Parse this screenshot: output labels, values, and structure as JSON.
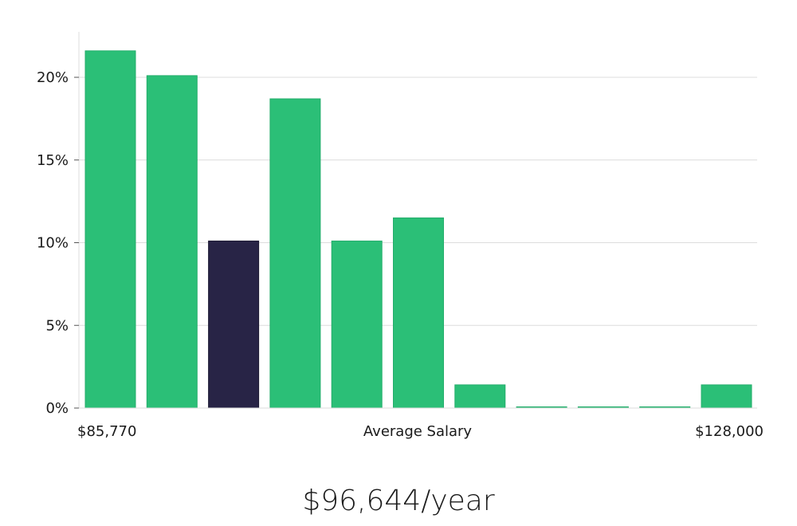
{
  "chart_data": {
    "type": "bar",
    "title": "",
    "xlabel": "Average Salary",
    "x_min_label": "$85,770",
    "x_max_label": "$128,000",
    "ylabel": "",
    "ylim": [
      0,
      22.5
    ],
    "yticks": [
      0,
      5,
      10,
      15,
      20
    ],
    "ytick_labels": [
      "0%",
      "5%",
      "10%",
      "15%",
      "20%"
    ],
    "grid": true,
    "values": [
      21.6,
      20.1,
      10.1,
      18.7,
      10.1,
      11.5,
      1.4,
      0,
      0,
      0,
      1.4
    ],
    "highlight_index": 2,
    "bar_color": "#2bbf77",
    "highlight_color": "#282446"
  },
  "summary": {
    "salary": "$96,644/year"
  }
}
